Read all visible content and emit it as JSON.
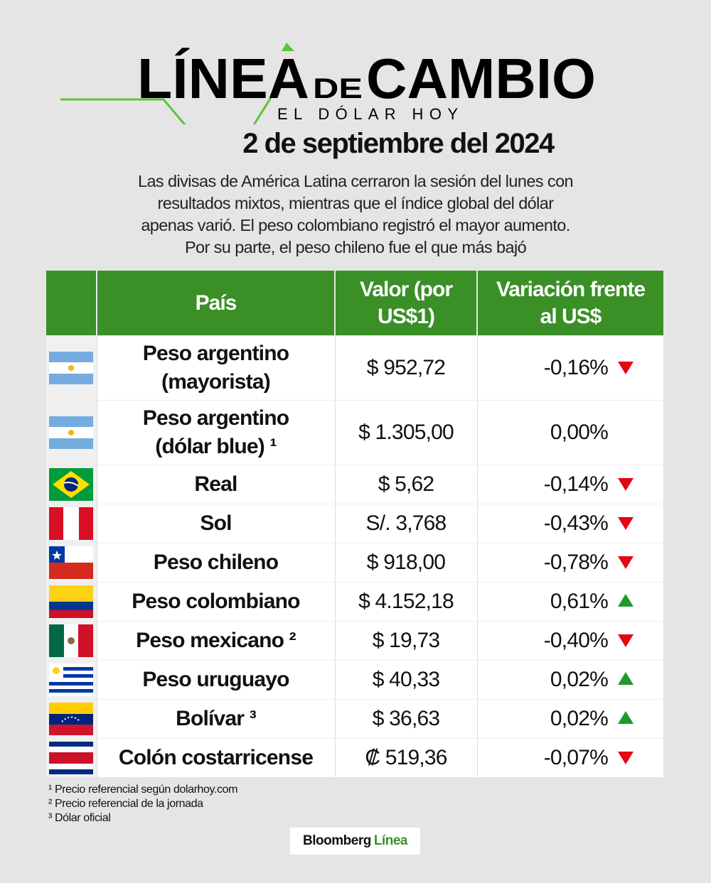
{
  "header": {
    "logo_word1": "LÍNEA",
    "logo_word2": "DE",
    "logo_word3": "CAMBIO",
    "logo_subtitle": "EL DÓLAR HOY",
    "date": "2 de septiembre del 2024"
  },
  "intro": [
    "Las divisas de América Latina cerraron la sesión del lunes con",
    "resultados mixtos, mientras que el índice global del dólar",
    "apenas varió. El peso colombiano registró el mayor aumento.",
    "Por su parte, el peso chileno fue el que más bajó"
  ],
  "table": {
    "columns": [
      [
        "País"
      ],
      [
        "Valor (por",
        "US$1)"
      ],
      [
        "Variación frente",
        "al US$"
      ]
    ],
    "rows": [
      {
        "name": [
          "Peso argentino",
          "(mayorista)"
        ],
        "value": "$ 952,72",
        "variation": "-0,16%"
      },
      {
        "name": [
          "Peso argentino",
          "(dólar blue) ¹"
        ],
        "value": "$ 1.305,00",
        "variation": "0,00%"
      },
      {
        "name": [
          "Real"
        ],
        "value": "$ 5,62",
        "variation": "-0,14%"
      },
      {
        "name": [
          "Sol"
        ],
        "value": "S/. 3,768",
        "variation": "-0,43%"
      },
      {
        "name": [
          "Peso chileno"
        ],
        "value": "$ 918,00",
        "variation": "-0,78%"
      },
      {
        "name": [
          "Peso colombiano"
        ],
        "value": "$ 4.152,18",
        "variation": "0,61%"
      },
      {
        "name": [
          "Peso mexicano ²"
        ],
        "value": "$ 19,73",
        "variation": "-0,40%"
      },
      {
        "name": [
          "Peso uruguayo"
        ],
        "value": "$ 40,33",
        "variation": "0,02%"
      },
      {
        "name": [
          "Bolívar ³"
        ],
        "value": "$ 36,63",
        "variation": "0,02%"
      },
      {
        "name": [
          "Colón costarricense"
        ],
        "value": "₡ 519,36",
        "variation": "-0,07%"
      }
    ]
  },
  "footnotes": [
    "¹ Precio referencial según dolarhoy.com",
    "² Precio referencial de la jornada",
    "³ Dólar oficial"
  ],
  "brand": {
    "name": "Bloomberg",
    "suffix": "Línea"
  }
}
